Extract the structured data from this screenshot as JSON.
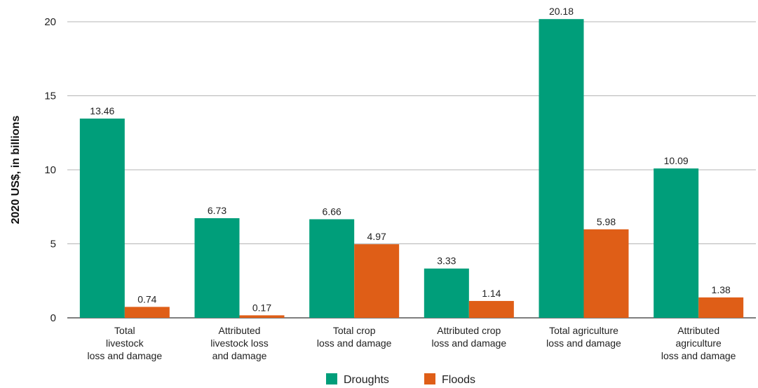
{
  "chart_data": {
    "type": "bar",
    "title": "",
    "xlabel": "",
    "ylabel": "2020 US$, in billions",
    "ylim": [
      0,
      20
    ],
    "yticks": [
      0,
      5,
      10,
      15,
      20
    ],
    "grid": true,
    "legend_position": "bottom",
    "categories": [
      [
        "Total",
        "livestock",
        "loss and damage"
      ],
      [
        "Attributed",
        "livestock loss",
        "and damage"
      ],
      [
        "Total crop",
        "loss and damage"
      ],
      [
        "Attributed crop",
        "loss and damage"
      ],
      [
        "Total agriculture",
        "loss and damage"
      ],
      [
        "Attributed",
        "agriculture",
        "loss and damage"
      ]
    ],
    "series": [
      {
        "name": "Droughts",
        "color": "#009e7a",
        "values": [
          13.46,
          6.73,
          6.66,
          3.33,
          20.18,
          10.09
        ]
      },
      {
        "name": "Floods",
        "color": "#df5e17",
        "values": [
          0.74,
          0.17,
          4.97,
          1.14,
          5.98,
          1.38
        ]
      }
    ]
  }
}
